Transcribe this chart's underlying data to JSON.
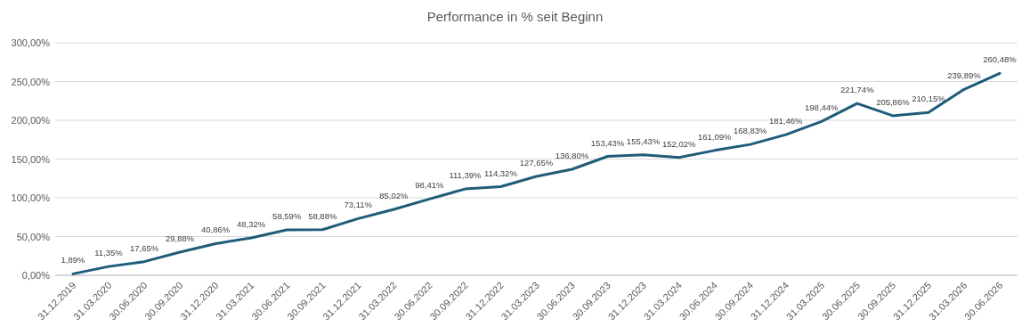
{
  "chart_data": {
    "type": "line",
    "title": "Performance in % seit Beginn",
    "categories": [
      "31.12.2019",
      "31.03.2020",
      "30.06.2020",
      "30.09.2020",
      "31.12.2020",
      "31.03.2021",
      "30.06.2021",
      "30.09.2021",
      "31.12.2021",
      "31.03.2022",
      "30.06.2022",
      "30.09.2022",
      "31.12.2022",
      "31.03.2023",
      "30.06.2023",
      "30.09.2023",
      "31.12.2023",
      "31.03.2024",
      "30.06.2024",
      "30.09.2024",
      "31.12.2024",
      "31.03.2025",
      "30.06.2025",
      "30.09.2025",
      "31.12.2025",
      "31.03.2026",
      "30.06.2026"
    ],
    "series": [
      {
        "color": "#1f5b7a",
        "values": [
          1.89,
          11.35,
          17.65,
          29.88,
          40.86,
          48.32,
          58.59,
          58.88,
          73.11,
          85.02,
          98.41,
          111.39,
          114.32,
          127.65,
          136.8,
          153.43,
          155.43,
          152.02,
          161.09,
          168.83,
          181.46,
          198.44,
          221.74,
          205.86,
          210.15,
          239.89,
          260.48
        ],
        "value_labels": [
          "1,89%",
          "11,35%",
          "17,65%",
          "29,88%",
          "40,86%",
          "48,32%",
          "58,59%",
          "58,88%",
          "73,11%",
          "85,02%",
          "98,41%",
          "111,39%",
          "114,32%",
          "127,65%",
          "136,80%",
          "153,43%",
          "155,43%",
          "152,02%",
          "161,09%",
          "168,83%",
          "181,46%",
          "198,44%",
          "221,74%",
          "205,86%",
          "210,15%",
          "239,89%",
          "260,48%"
        ]
      }
    ],
    "ylim": [
      0,
      300
    ],
    "yticks": [
      {
        "value": 0,
        "label": "0,00%"
      },
      {
        "value": 50,
        "label": "50,00%"
      },
      {
        "value": 100,
        "label": "100,00%"
      },
      {
        "value": 150,
        "label": "150,00%"
      },
      {
        "value": 200,
        "label": "200,00%"
      },
      {
        "value": 250,
        "label": "250,00%"
      },
      {
        "value": 300,
        "label": "300,00%"
      }
    ],
    "grid": "y",
    "marker": "none",
    "line_style": "solid"
  }
}
